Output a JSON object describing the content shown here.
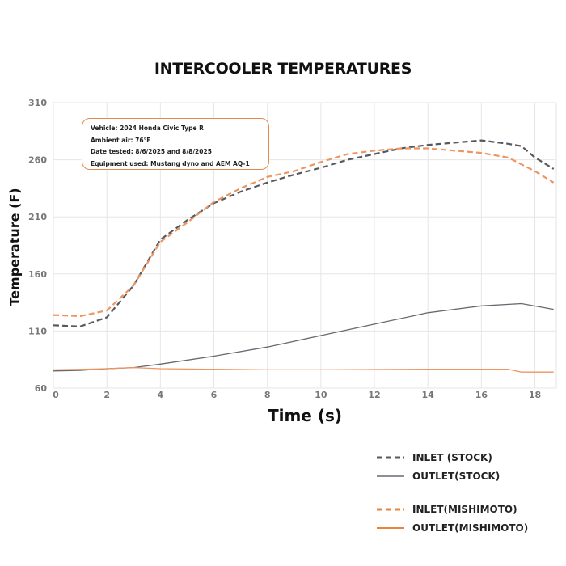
{
  "chart_data": {
    "type": "line",
    "title": "INTERCOOLER TEMPERATURES",
    "xlabel": "Time (s)",
    "ylabel": "Temperature (F)",
    "xlim": [
      0,
      18.8
    ],
    "ylim": [
      60,
      310
    ],
    "xticks": [
      0,
      2,
      4,
      6,
      8,
      10,
      12,
      14,
      16,
      18
    ],
    "yticks": [
      60,
      110,
      160,
      210,
      260,
      310
    ],
    "grid": true,
    "legend_placement": "bottom-right",
    "annotation": [
      "Vehicle: 2024 Honda Civic Type R",
      "Ambient air: 76°F",
      "Date tested: 8/6/2025 and 8/8/2025",
      "Equipment used: Mustang dyno and AEM AQ-1"
    ],
    "series": [
      {
        "name": "INLET (STOCK)",
        "color": "#555a60",
        "dash": true,
        "x": [
          0,
          1,
          2,
          3,
          4,
          5,
          6,
          7,
          8,
          9,
          10,
          11,
          12,
          13,
          14,
          15,
          16,
          17,
          17.5,
          18,
          18.7
        ],
        "y": [
          115,
          114,
          122,
          150,
          190,
          207,
          222,
          232,
          240,
          247,
          253,
          260,
          265,
          270,
          273,
          275,
          277,
          274,
          272,
          262,
          252
        ]
      },
      {
        "name": "OUTLET(STOCK)",
        "color": "#666a70",
        "dash": false,
        "x": [
          0,
          1,
          2,
          3,
          4,
          6,
          8,
          10,
          12,
          14,
          16,
          17.5,
          18.7
        ],
        "y": [
          75,
          75.5,
          77,
          78,
          81,
          88,
          96,
          106,
          116,
          126,
          132,
          134,
          129
        ]
      },
      {
        "name": "INLET(MISHIMOTO)",
        "color": "#ee9560",
        "dash": true,
        "x": [
          0,
          1,
          2,
          3,
          4,
          5,
          6,
          7,
          8,
          9,
          10,
          11,
          12,
          13,
          14,
          15,
          16,
          17,
          18,
          18.7
        ],
        "y": [
          124,
          123,
          128,
          150,
          188,
          205,
          223,
          235,
          245,
          250,
          258,
          265,
          268,
          270,
          270,
          268,
          266,
          262,
          250,
          240
        ]
      },
      {
        "name": "OUTLET(MISHIMOTO)",
        "color": "#ee9560",
        "dash": false,
        "x": [
          0,
          2,
          3,
          4,
          6,
          8,
          10,
          14,
          17,
          17.5,
          18.7
        ],
        "y": [
          76,
          77,
          78,
          77,
          76.5,
          76,
          76,
          76.5,
          76.5,
          74,
          74
        ]
      }
    ]
  }
}
